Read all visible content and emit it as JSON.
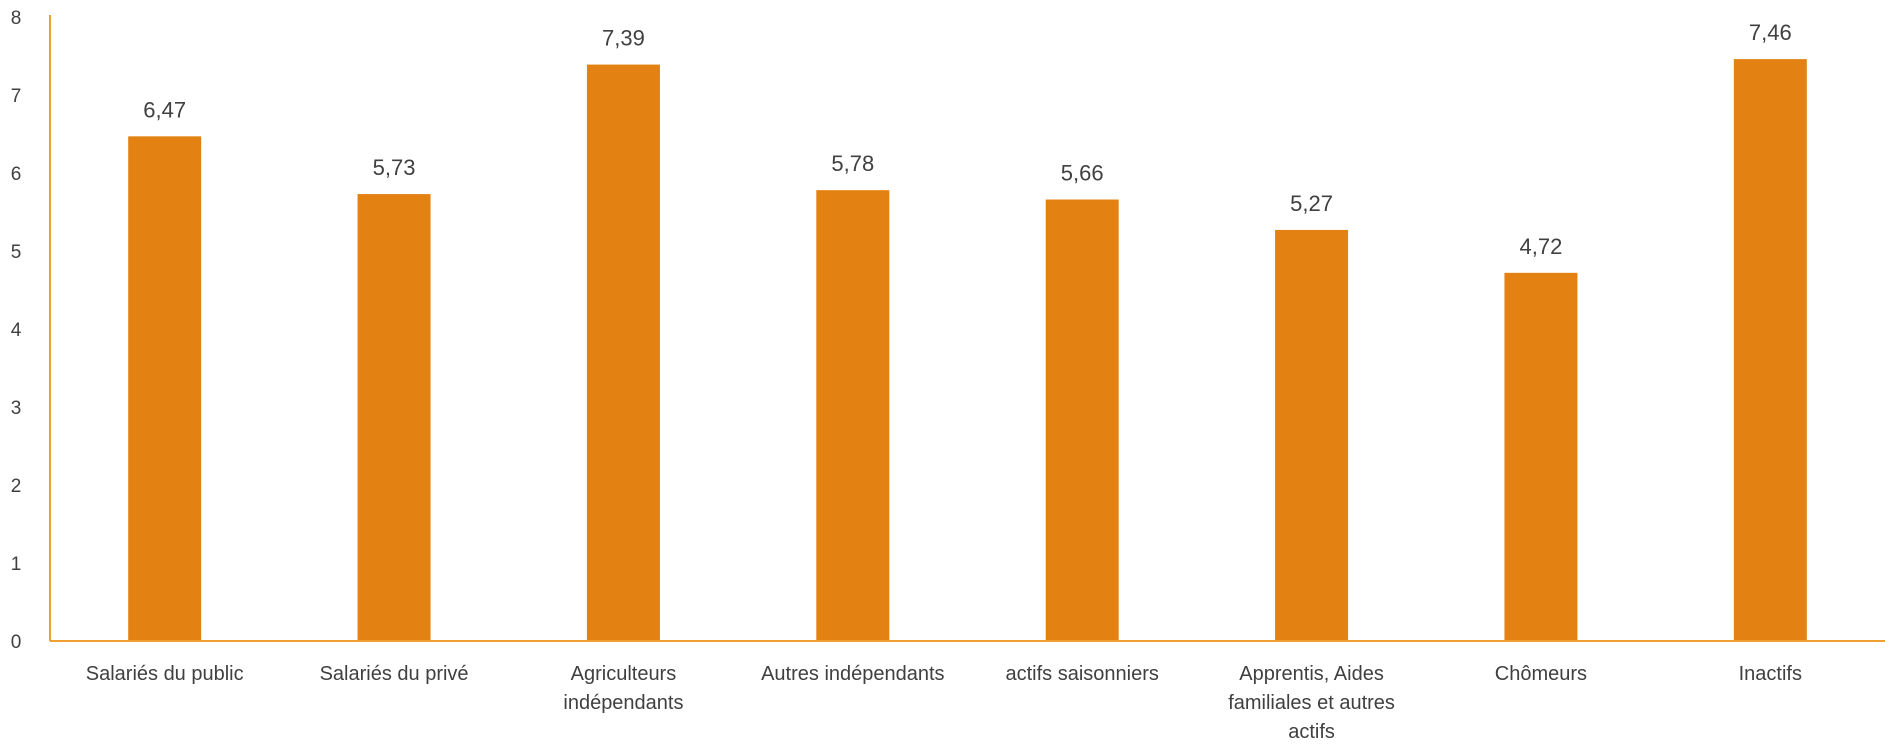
{
  "chart_data": {
    "type": "bar",
    "categories": [
      [
        "Salariés du public"
      ],
      [
        "Salariés du privé"
      ],
      [
        "Agriculteurs",
        "indépendants"
      ],
      [
        "Autres indépendants"
      ],
      [
        "actifs saisonniers"
      ],
      [
        "Apprentis, Aides",
        "familiales et autres",
        "actifs"
      ],
      [
        "Chômeurs"
      ],
      [
        "Inactifs"
      ]
    ],
    "values": [
      6.47,
      5.73,
      7.39,
      5.78,
      5.66,
      5.27,
      4.72,
      7.46
    ],
    "value_labels": [
      "6,47",
      "5,73",
      "7,39",
      "5,78",
      "5,66",
      "5,27",
      "4,72",
      "7,46"
    ],
    "yticks": [
      0,
      1,
      2,
      3,
      4,
      5,
      6,
      7,
      8
    ],
    "ylim": [
      0,
      8
    ],
    "title": "",
    "xlabel": "",
    "ylabel": "",
    "grid": false,
    "legend": "none",
    "colors": {
      "bar": "#E38212",
      "axis": "#F0A030",
      "text": "#404040"
    }
  }
}
